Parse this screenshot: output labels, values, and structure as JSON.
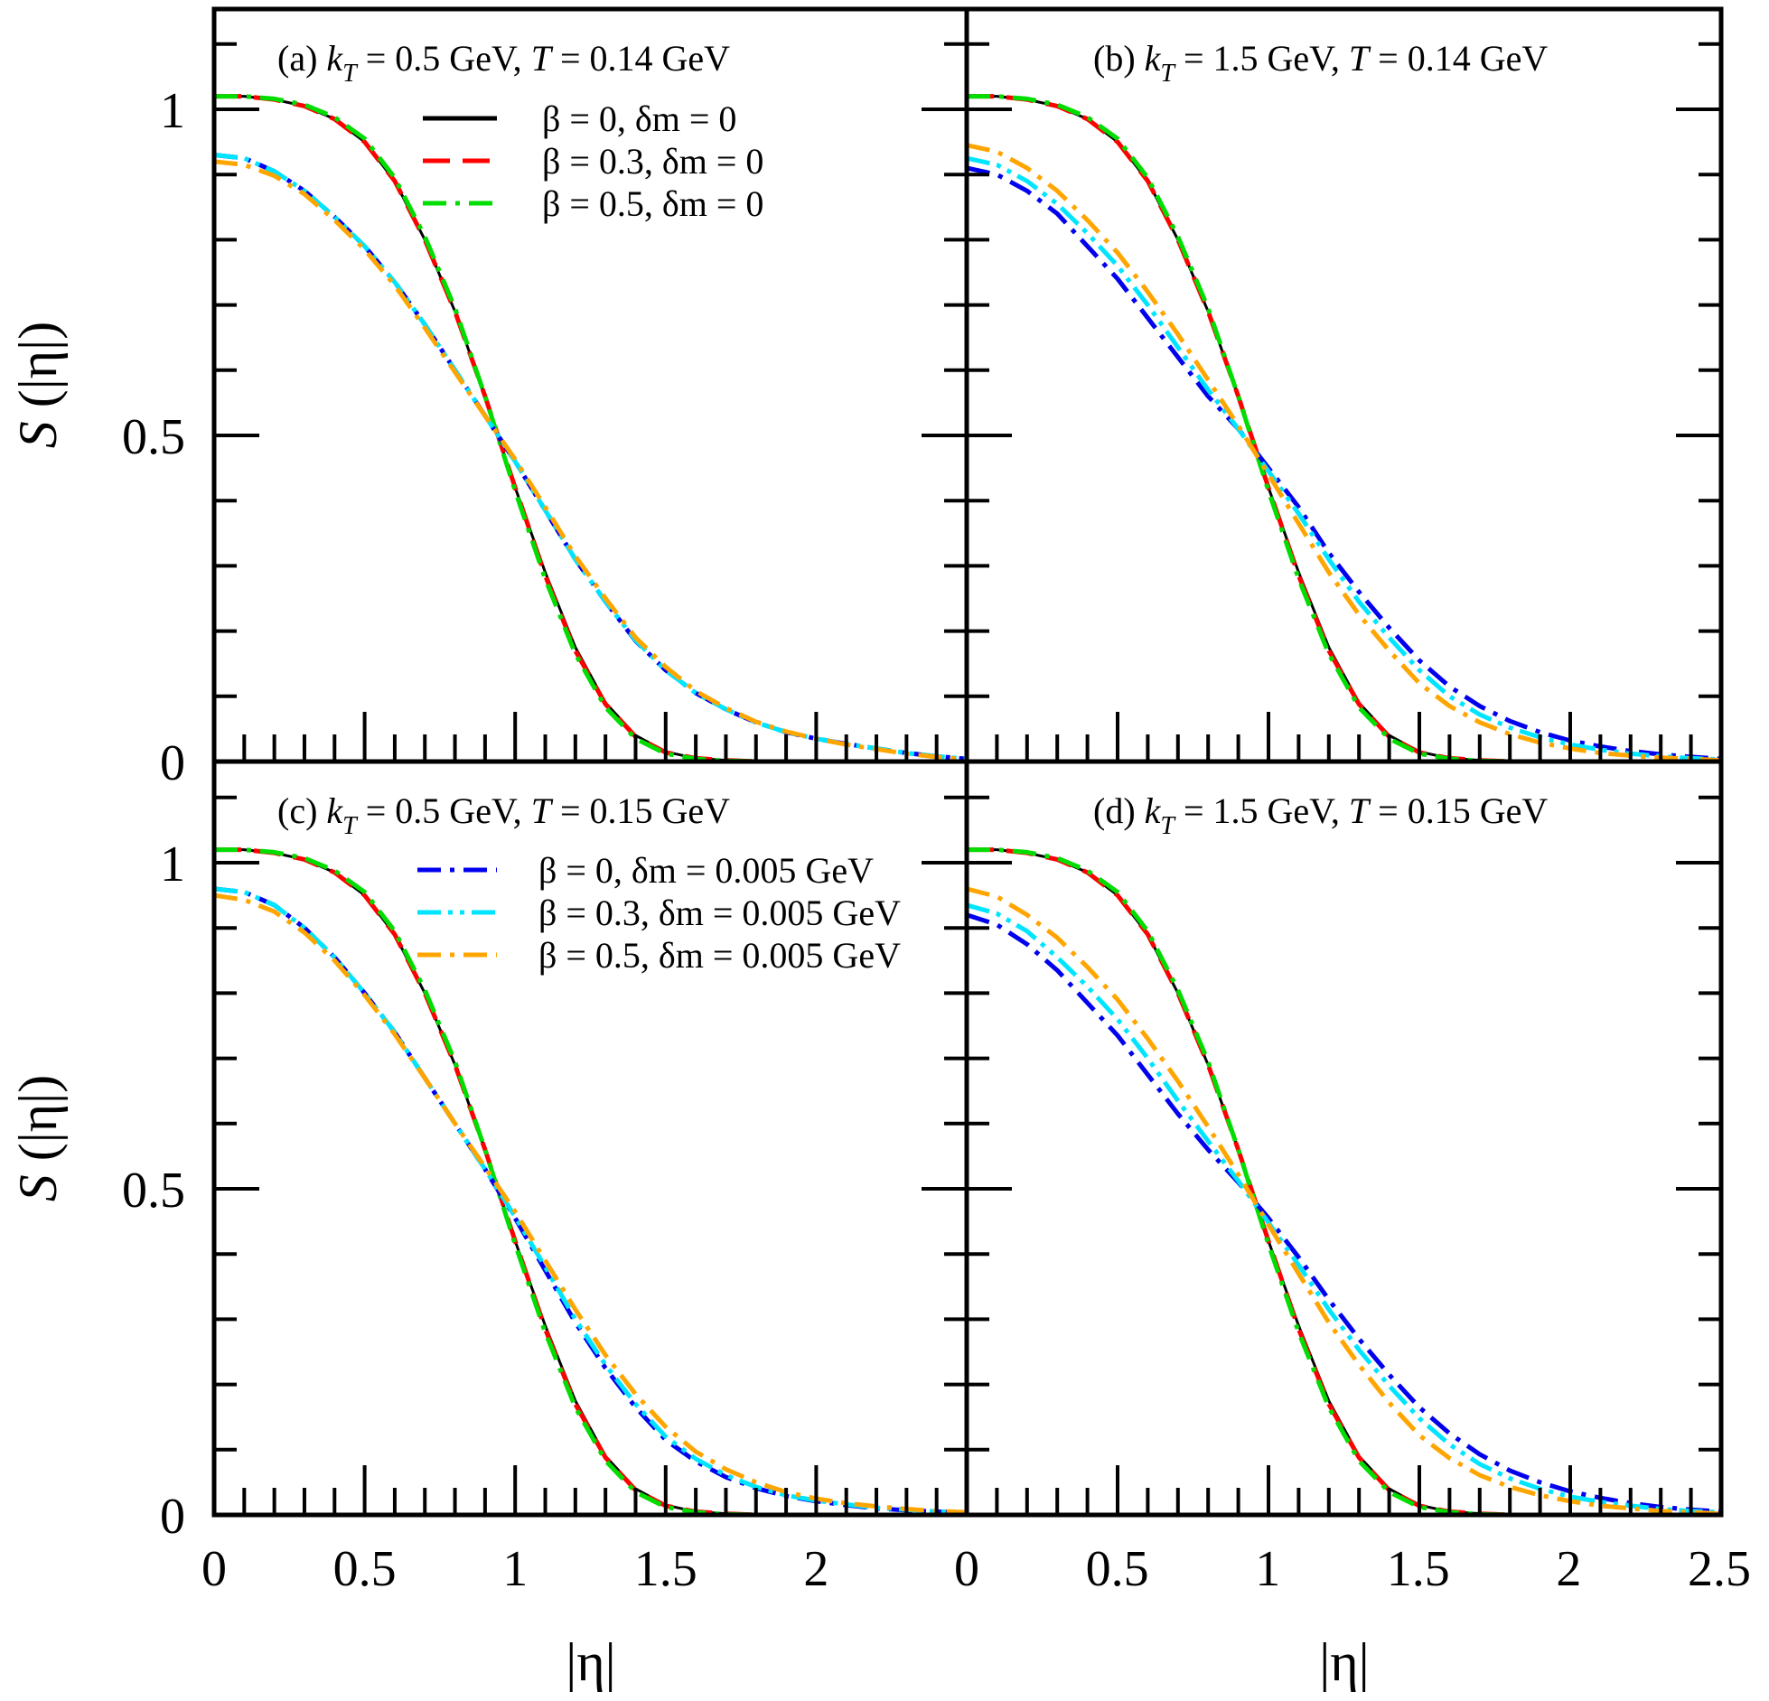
{
  "chart_data": {
    "type": "line",
    "xlabel": "|η|",
    "ylabel": "S (|η|)",
    "xlim": [
      0,
      2.5
    ],
    "ylim": [
      0,
      1.15
    ],
    "x_major_ticks": [
      0,
      0.5,
      1,
      1.5,
      2,
      2.5
    ],
    "x_tick_labels_left": [
      "0",
      "0.5",
      "1",
      "1.5",
      "2"
    ],
    "x_tick_labels_right": [
      "0",
      "0.5",
      "1",
      "1.5",
      "2",
      "2.5"
    ],
    "y_tick_labels": [
      "0",
      "0.5",
      "1"
    ],
    "y_major_ticks": [
      0,
      0.5,
      1
    ],
    "minor_step": 0.1,
    "x": [
      0,
      0.1,
      0.2,
      0.3,
      0.4,
      0.5,
      0.6,
      0.7,
      0.8,
      0.9,
      1.0,
      1.1,
      1.2,
      1.3,
      1.4,
      1.5,
      1.6,
      1.7,
      1.8,
      1.9,
      2.0,
      2.1,
      2.2,
      2.3,
      2.4,
      2.5
    ],
    "series_styles": [
      {
        "name": "β = 0, δm = 0",
        "color": "#000000",
        "dash": "solid"
      },
      {
        "name": "β = 0.3, δm = 0",
        "color": "#ff0000",
        "dash": "dashed"
      },
      {
        "name": "β = 0.5, δm = 0",
        "color": "#00dd00",
        "dash": "dash-dot"
      },
      {
        "name": "β = 0, δm = 0.005 GeV",
        "color": "#0000ee",
        "dash": "dash-dot"
      },
      {
        "name": "β = 0.3, δm = 0.005 GeV",
        "color": "#00e5ff",
        "dash": "dash-dot-dot"
      },
      {
        "name": "β = 0.5, δm = 0.005 GeV",
        "color": "#ffa500",
        "dash": "dash-dot"
      }
    ],
    "panels": [
      {
        "id": "a",
        "title": "(a) kT = 0.5 GeV, T = 0.14 GeV",
        "title_parts": [
          "(a) ",
          "k",
          "T",
          " = 0.5 GeV, ",
          "T",
          " = 0.14 GeV"
        ],
        "legend": [
          "β = 0, δm = 0",
          "β = 0.3, δm = 0",
          "β = 0.5, δm = 0"
        ],
        "legend_series": [
          0,
          1,
          2
        ],
        "series": [
          [
            1.02,
            1.02,
            1.015,
            1.005,
            0.985,
            0.95,
            0.89,
            0.8,
            0.69,
            0.56,
            0.42,
            0.29,
            0.175,
            0.09,
            0.04,
            0.015,
            0.005,
            0.002,
            0,
            0,
            0,
            0,
            0,
            0,
            0,
            0
          ],
          [
            1.02,
            1.02,
            1.015,
            1.005,
            0.985,
            0.95,
            0.89,
            0.8,
            0.69,
            0.56,
            0.42,
            0.285,
            0.17,
            0.088,
            0.038,
            0.014,
            0.005,
            0.002,
            0,
            0,
            0,
            0,
            0,
            0,
            0,
            0
          ],
          [
            1.02,
            1.02,
            1.016,
            1.007,
            0.988,
            0.955,
            0.895,
            0.805,
            0.695,
            0.56,
            0.415,
            0.28,
            0.165,
            0.083,
            0.035,
            0.012,
            0.004,
            0.001,
            0,
            0,
            0,
            0,
            0,
            0,
            0,
            0
          ],
          [
            0.93,
            0.925,
            0.905,
            0.875,
            0.835,
            0.79,
            0.735,
            0.67,
            0.6,
            0.53,
            0.46,
            0.385,
            0.31,
            0.245,
            0.185,
            0.14,
            0.105,
            0.08,
            0.06,
            0.045,
            0.035,
            0.027,
            0.02,
            0.013,
            0.008,
            0.004
          ],
          [
            0.93,
            0.925,
            0.905,
            0.875,
            0.835,
            0.79,
            0.735,
            0.67,
            0.6,
            0.53,
            0.46,
            0.385,
            0.31,
            0.245,
            0.186,
            0.14,
            0.105,
            0.08,
            0.06,
            0.045,
            0.035,
            0.027,
            0.02,
            0.013,
            0.008,
            0.004
          ],
          [
            0.92,
            0.915,
            0.898,
            0.87,
            0.83,
            0.785,
            0.73,
            0.665,
            0.597,
            0.53,
            0.463,
            0.39,
            0.315,
            0.25,
            0.19,
            0.145,
            0.108,
            0.082,
            0.061,
            0.046,
            0.035,
            0.026,
            0.019,
            0.012,
            0.007,
            0.003
          ]
        ]
      },
      {
        "id": "b",
        "title": "(b) kT = 1.5 GeV, T = 0.14 GeV",
        "title_parts": [
          "(b) ",
          "k",
          "T",
          " = 1.5 GeV, ",
          "T",
          " = 0.14 GeV"
        ],
        "legend": [],
        "legend_series": [],
        "series": [
          [
            1.02,
            1.02,
            1.015,
            1.005,
            0.985,
            0.95,
            0.89,
            0.8,
            0.69,
            0.56,
            0.42,
            0.29,
            0.175,
            0.09,
            0.04,
            0.015,
            0.005,
            0.002,
            0,
            0,
            0,
            0,
            0,
            0,
            0,
            0
          ],
          [
            1.02,
            1.02,
            1.015,
            1.005,
            0.985,
            0.95,
            0.89,
            0.8,
            0.69,
            0.56,
            0.42,
            0.285,
            0.17,
            0.088,
            0.038,
            0.014,
            0.005,
            0.002,
            0,
            0,
            0,
            0,
            0,
            0,
            0,
            0
          ],
          [
            1.02,
            1.02,
            1.016,
            1.007,
            0.988,
            0.955,
            0.895,
            0.805,
            0.695,
            0.56,
            0.415,
            0.28,
            0.165,
            0.083,
            0.035,
            0.012,
            0.004,
            0.001,
            0,
            0,
            0,
            0,
            0,
            0,
            0,
            0
          ],
          [
            0.91,
            0.9,
            0.875,
            0.84,
            0.79,
            0.74,
            0.68,
            0.62,
            0.56,
            0.51,
            0.45,
            0.39,
            0.32,
            0.26,
            0.205,
            0.155,
            0.115,
            0.085,
            0.062,
            0.045,
            0.032,
            0.023,
            0.016,
            0.011,
            0.007,
            0.004
          ],
          [
            0.925,
            0.915,
            0.89,
            0.855,
            0.81,
            0.76,
            0.7,
            0.635,
            0.57,
            0.51,
            0.445,
            0.38,
            0.31,
            0.245,
            0.19,
            0.14,
            0.1,
            0.072,
            0.052,
            0.037,
            0.026,
            0.018,
            0.012,
            0.008,
            0.005,
            0.003
          ],
          [
            0.945,
            0.935,
            0.91,
            0.875,
            0.83,
            0.78,
            0.72,
            0.655,
            0.585,
            0.515,
            0.44,
            0.365,
            0.29,
            0.225,
            0.17,
            0.12,
            0.085,
            0.06,
            0.042,
            0.029,
            0.02,
            0.013,
            0.009,
            0.006,
            0.004,
            0.002
          ]
        ]
      },
      {
        "id": "c",
        "title": "(c) kT = 0.5 GeV, T = 0.15 GeV",
        "title_parts": [
          "(c) ",
          "k",
          "T",
          " = 0.5 GeV, ",
          "T",
          " = 0.15 GeV"
        ],
        "legend": [
          "β = 0, δm = 0.005 GeV",
          "β = 0.3, δm = 0.005 GeV",
          "β = 0.5, δm = 0.005 GeV"
        ],
        "legend_series": [
          3,
          4,
          5
        ],
        "series": [
          [
            1.02,
            1.02,
            1.015,
            1.005,
            0.985,
            0.95,
            0.89,
            0.8,
            0.69,
            0.56,
            0.42,
            0.29,
            0.175,
            0.09,
            0.04,
            0.015,
            0.005,
            0.002,
            0,
            0,
            0,
            0,
            0,
            0,
            0,
            0
          ],
          [
            1.02,
            1.02,
            1.015,
            1.005,
            0.985,
            0.95,
            0.89,
            0.8,
            0.69,
            0.56,
            0.42,
            0.285,
            0.17,
            0.088,
            0.038,
            0.014,
            0.005,
            0.002,
            0,
            0,
            0,
            0,
            0,
            0,
            0,
            0
          ],
          [
            1.02,
            1.02,
            1.016,
            1.007,
            0.988,
            0.955,
            0.895,
            0.805,
            0.695,
            0.56,
            0.415,
            0.28,
            0.165,
            0.083,
            0.035,
            0.012,
            0.004,
            0.001,
            0,
            0,
            0,
            0,
            0,
            0,
            0,
            0
          ],
          [
            0.96,
            0.955,
            0.935,
            0.9,
            0.855,
            0.8,
            0.74,
            0.67,
            0.6,
            0.53,
            0.455,
            0.375,
            0.295,
            0.225,
            0.165,
            0.115,
            0.082,
            0.058,
            0.041,
            0.029,
            0.021,
            0.015,
            0.01,
            0.007,
            0.005,
            0.003
          ],
          [
            0.96,
            0.955,
            0.935,
            0.9,
            0.855,
            0.8,
            0.74,
            0.67,
            0.6,
            0.53,
            0.457,
            0.38,
            0.3,
            0.23,
            0.17,
            0.12,
            0.086,
            0.061,
            0.043,
            0.03,
            0.022,
            0.016,
            0.011,
            0.008,
            0.005,
            0.003
          ],
          [
            0.95,
            0.943,
            0.925,
            0.893,
            0.85,
            0.797,
            0.737,
            0.67,
            0.6,
            0.533,
            0.465,
            0.39,
            0.315,
            0.245,
            0.185,
            0.135,
            0.097,
            0.07,
            0.05,
            0.035,
            0.025,
            0.018,
            0.013,
            0.009,
            0.006,
            0.004
          ]
        ]
      },
      {
        "id": "d",
        "title": "(d) kT = 1.5 GeV, T = 0.15 GeV",
        "title_parts": [
          "(d) ",
          "k",
          "T",
          " = 1.5 GeV, ",
          "T",
          " = 0.15 GeV"
        ],
        "legend": [],
        "legend_series": [],
        "series": [
          [
            1.02,
            1.02,
            1.015,
            1.005,
            0.985,
            0.95,
            0.89,
            0.8,
            0.69,
            0.56,
            0.42,
            0.29,
            0.175,
            0.09,
            0.04,
            0.015,
            0.005,
            0.002,
            0,
            0,
            0,
            0,
            0,
            0,
            0,
            0
          ],
          [
            1.02,
            1.02,
            1.015,
            1.005,
            0.985,
            0.95,
            0.89,
            0.8,
            0.69,
            0.56,
            0.42,
            0.285,
            0.17,
            0.088,
            0.038,
            0.014,
            0.005,
            0.002,
            0,
            0,
            0,
            0,
            0,
            0,
            0,
            0
          ],
          [
            1.02,
            1.02,
            1.016,
            1.007,
            0.988,
            0.955,
            0.895,
            0.805,
            0.695,
            0.56,
            0.415,
            0.28,
            0.165,
            0.083,
            0.035,
            0.012,
            0.004,
            0.001,
            0,
            0,
            0,
            0,
            0,
            0,
            0,
            0
          ],
          [
            0.92,
            0.905,
            0.875,
            0.835,
            0.785,
            0.735,
            0.675,
            0.615,
            0.56,
            0.51,
            0.455,
            0.395,
            0.33,
            0.27,
            0.215,
            0.165,
            0.125,
            0.093,
            0.068,
            0.05,
            0.036,
            0.026,
            0.018,
            0.012,
            0.008,
            0.005
          ],
          [
            0.935,
            0.922,
            0.895,
            0.855,
            0.81,
            0.76,
            0.7,
            0.635,
            0.573,
            0.512,
            0.448,
            0.383,
            0.315,
            0.253,
            0.198,
            0.148,
            0.108,
            0.078,
            0.056,
            0.04,
            0.028,
            0.02,
            0.014,
            0.009,
            0.006,
            0.004
          ],
          [
            0.96,
            0.948,
            0.92,
            0.885,
            0.84,
            0.79,
            0.73,
            0.665,
            0.595,
            0.522,
            0.445,
            0.37,
            0.295,
            0.23,
            0.172,
            0.122,
            0.087,
            0.061,
            0.043,
            0.03,
            0.021,
            0.014,
            0.01,
            0.006,
            0.004,
            0.002
          ]
        ]
      }
    ]
  }
}
